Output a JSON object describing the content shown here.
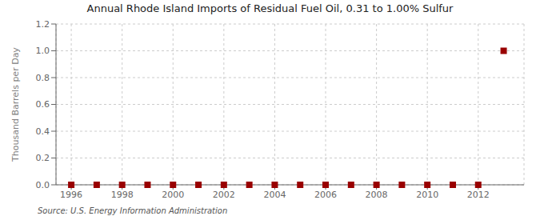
{
  "chart_data": {
    "type": "scatter",
    "title": "Annual Rhode Island Imports of Residual Fuel Oil, 0.31 to 1.00% Sulfur",
    "ylabel": "Thousand Barrels per Day",
    "source": "Source: U.S. Energy Information Administration",
    "x": [
      1996,
      1997,
      1998,
      1999,
      2000,
      2001,
      2002,
      2003,
      2004,
      2005,
      2006,
      2007,
      2008,
      2009,
      2010,
      2011,
      2012,
      2013
    ],
    "values": [
      0.0,
      0.0,
      0.0,
      0.0,
      0.0,
      0.0,
      0.0,
      0.0,
      0.0,
      0.0,
      0.0,
      0.0,
      0.0,
      0.0,
      0.0,
      0.0,
      0.0,
      1.0
    ],
    "color": "#990000",
    "marker": "square",
    "xlim": [
      1995.4,
      2013.8
    ],
    "xticks": [
      1996,
      1998,
      2000,
      2002,
      2004,
      2006,
      2008,
      2010,
      2012
    ],
    "ylim": [
      0.0,
      1.2
    ],
    "yticks": [
      {
        "value": 0,
        "label": "0.0"
      },
      0.2,
      0.4,
      0.6,
      0.8,
      {
        "value": 1,
        "label": "1.0"
      },
      1.2
    ],
    "grid": true
  }
}
